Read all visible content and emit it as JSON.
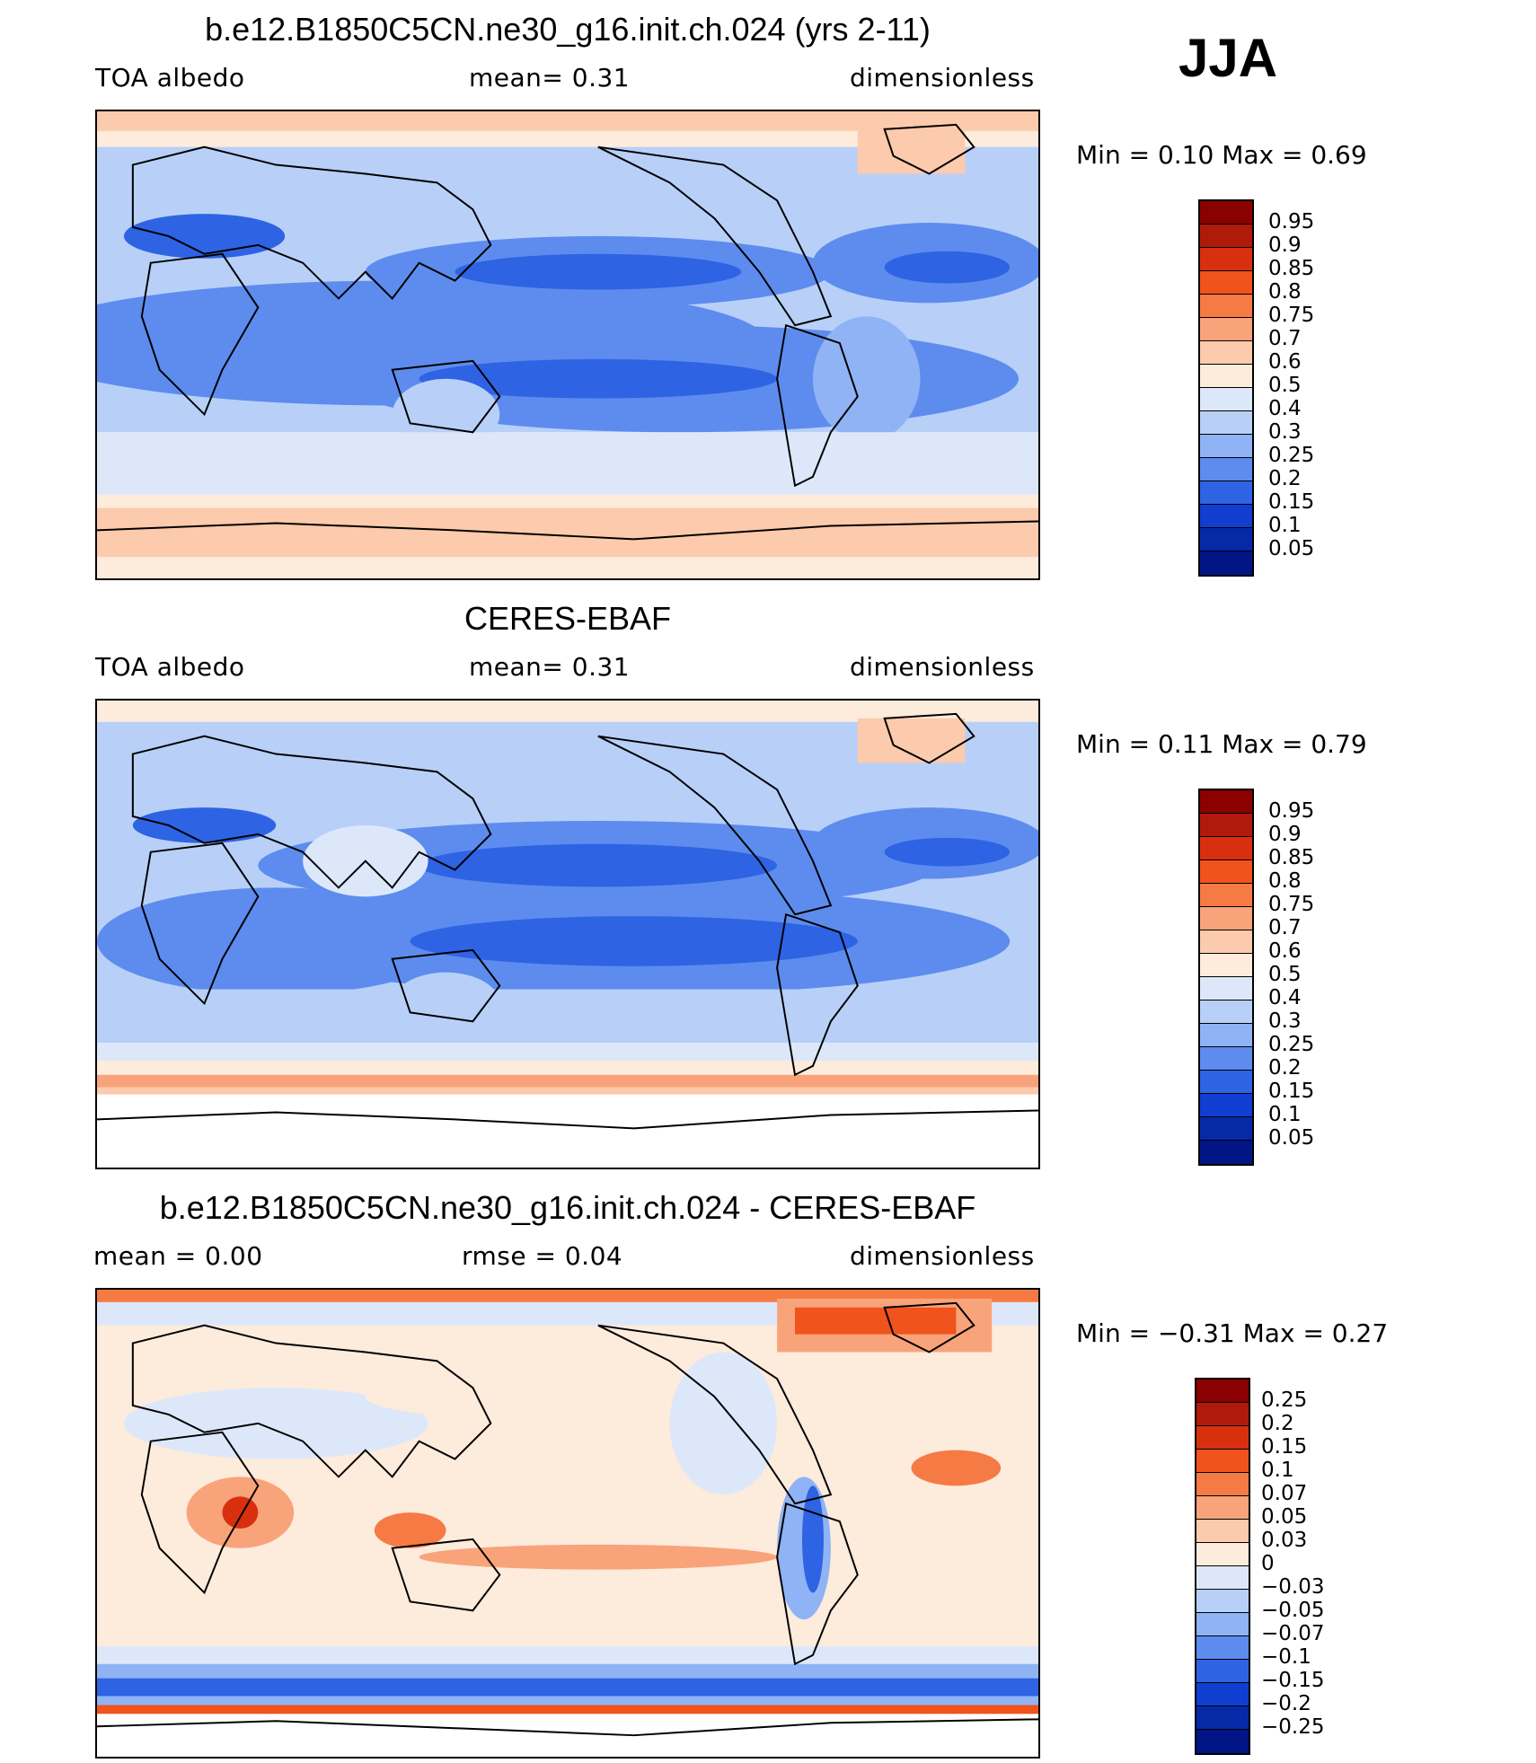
{
  "season": "JJA",
  "panels": [
    {
      "title": "b.e12.B1850C5CN.ne30_g16.init.ch.024 (yrs 2-11)",
      "left_label": "TOA  albedo",
      "center_label": "mean=     0.31",
      "right_label": "dimensionless",
      "minmax": "Min  =      0.10  Max  =      0.69",
      "colorbar_labels": [
        "0.95",
        "0.9",
        "0.85",
        "0.8",
        "0.75",
        "0.7",
        "0.6",
        "0.5",
        "0.4",
        "0.3",
        "0.25",
        "0.2",
        "0.15",
        "0.1",
        "0.05"
      ]
    },
    {
      "title": "CERES-EBAF",
      "left_label": "TOA  albedo",
      "center_label": "mean=     0.31",
      "right_label": "dimensionless",
      "minmax": "Min  =      0.11  Max  =      0.79",
      "colorbar_labels": [
        "0.95",
        "0.9",
        "0.85",
        "0.8",
        "0.75",
        "0.7",
        "0.6",
        "0.5",
        "0.4",
        "0.3",
        "0.25",
        "0.2",
        "0.15",
        "0.1",
        "0.05"
      ]
    },
    {
      "title": "b.e12.B1850C5CN.ne30_g16.init.ch.024 - CERES-EBAF",
      "left_label": "mean  =      0.00",
      "center_label": "rmse  =      0.04",
      "right_label": "dimensionless",
      "minmax": "Min  =    −0.31  Max  =      0.27",
      "colorbar_labels": [
        "0.25",
        "0.2",
        "0.15",
        "0.1",
        "0.07",
        "0.05",
        "0.03",
        "0",
        "−0.03",
        "−0.05",
        "−0.07",
        "−0.1",
        "−0.15",
        "−0.2",
        "−0.25"
      ]
    }
  ],
  "colorbar_colors": [
    "#8b0000",
    "#b01a0a",
    "#d8300f",
    "#f0531c",
    "#f67a44",
    "#f9a37a",
    "#fccaac",
    "#fdebdc",
    "#dce8fa",
    "#b8d0f8",
    "#8fb3f4",
    "#5d8cee",
    "#2e63e4",
    "#0f3ed0",
    "#0729a8",
    "#021585"
  ]
}
